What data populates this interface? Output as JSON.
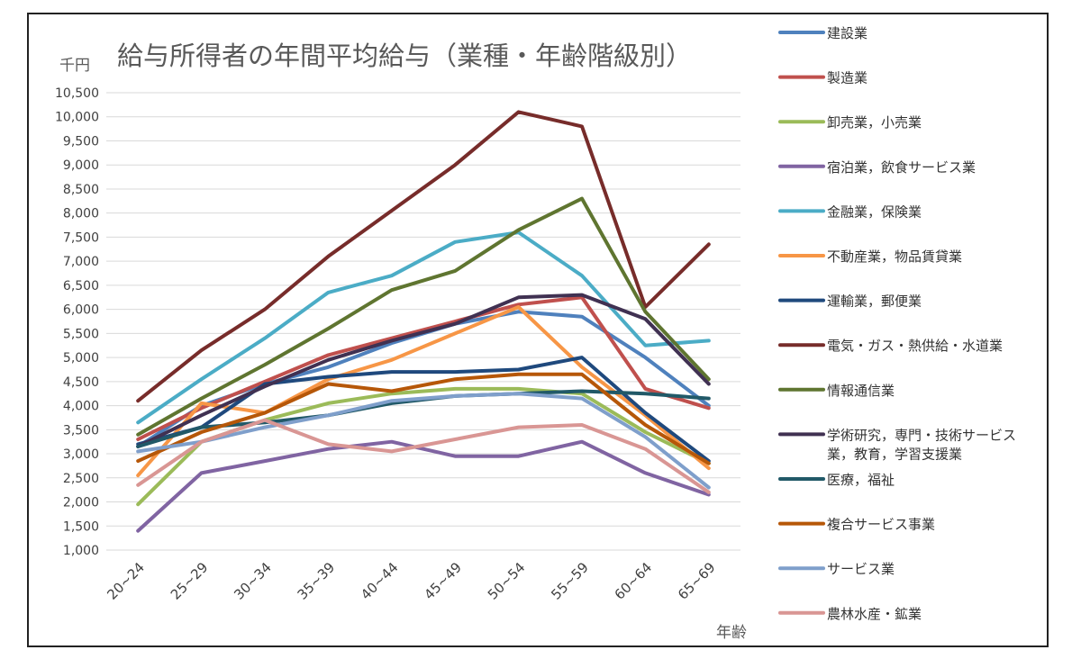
{
  "chart_data": {
    "type": "line",
    "title": "給与所得者の年間平均給与（業種・年齢階級別）",
    "yunit": "千円",
    "xlabel": "年齢",
    "ylim": [
      1000,
      10500
    ],
    "yticks": [
      1000,
      1500,
      2000,
      2500,
      3000,
      3500,
      4000,
      4500,
      5000,
      5500,
      6000,
      6500,
      7000,
      7500,
      8000,
      8500,
      9000,
      9500,
      10000,
      10500
    ],
    "ytick_labels": [
      "1,000",
      "1,500",
      "2,000",
      "2,500",
      "3,000",
      "3,500",
      "4,000",
      "4,500",
      "5,000",
      "5,500",
      "6,000",
      "6,500",
      "7,000",
      "7,500",
      "8,000",
      "8,500",
      "9,000",
      "9,500",
      "10,000",
      "10,500"
    ],
    "categories": [
      "20~24",
      "25~29",
      "30~34",
      "35~39",
      "40~44",
      "45~49",
      "50~54",
      "55~59",
      "60~64",
      "65~69"
    ],
    "grid": true,
    "legend_position": "right",
    "series": [
      {
        "name": "建設業",
        "color": "#4f81bd",
        "values": [
          3150,
          4000,
          4450,
          4800,
          5300,
          5700,
          5950,
          5850,
          5000,
          4000
        ]
      },
      {
        "name": "製造業",
        "color": "#c0504d",
        "values": [
          3300,
          3950,
          4500,
          5050,
          5400,
          5750,
          6100,
          6250,
          4350,
          3950
        ]
      },
      {
        "name": "卸売業，小売業",
        "color": "#9bbb59",
        "values": [
          1950,
          3250,
          3700,
          4050,
          4250,
          4350,
          4350,
          4250,
          3450,
          2800
        ]
      },
      {
        "name": "宿泊業，飲食サービス業",
        "color": "#8064a2",
        "values": [
          1400,
          2600,
          2850,
          3100,
          3250,
          2950,
          2950,
          3250,
          2600,
          2150
        ]
      },
      {
        "name": "金融業，保険業",
        "color": "#4bacc6",
        "values": [
          3650,
          4550,
          5400,
          6350,
          6700,
          7400,
          7600,
          6700,
          5250,
          5350
        ]
      },
      {
        "name": "不動産業，物品賃貸業",
        "color": "#f79646",
        "values": [
          2550,
          4050,
          3850,
          4550,
          4950,
          5500,
          6050,
          4800,
          3800,
          2700
        ]
      },
      {
        "name": "運輸業，郵便業",
        "color": "#1f497d",
        "values": [
          3200,
          3550,
          4450,
          4600,
          4700,
          4700,
          4750,
          5000,
          3850,
          2850
        ]
      },
      {
        "name": "電気・ガス・熱供給・水道業",
        "color": "#772c2a",
        "values": [
          4100,
          5150,
          6000,
          7100,
          8050,
          9000,
          10100,
          9800,
          6050,
          7350
        ]
      },
      {
        "name": "情報通信業",
        "color": "#5f7530",
        "values": [
          3400,
          4150,
          4850,
          5600,
          6400,
          6800,
          7650,
          8300,
          5950,
          4550
        ]
      },
      {
        "name": "学術研究，専門・技術サービス業，教育，学習支援業",
        "color": "#403152",
        "values": [
          3150,
          3800,
          4400,
          4950,
          5350,
          5700,
          6250,
          6300,
          5800,
          4450
        ]
      },
      {
        "name": "医療，福祉",
        "color": "#215968",
        "values": [
          3150,
          3550,
          3650,
          3800,
          4050,
          4200,
          4250,
          4300,
          4250,
          4150
        ]
      },
      {
        "name": "複合サービス事業",
        "color": "#b65708",
        "values": [
          2850,
          3450,
          3850,
          4450,
          4300,
          4550,
          4650,
          4650,
          3600,
          2800
        ]
      },
      {
        "name": "サービス業",
        "color": "#7f9fcb",
        "values": [
          3050,
          3250,
          3550,
          3800,
          4100,
          4200,
          4250,
          4150,
          3350,
          2300
        ]
      },
      {
        "name": "農林水産・鉱業",
        "color": "#d99694",
        "values": [
          2350,
          3250,
          3700,
          3200,
          3050,
          3300,
          3550,
          3600,
          3100,
          2200
        ]
      }
    ],
    "legend_labels": [
      [
        "建設業"
      ],
      [
        "製造業"
      ],
      [
        "卸売業，小売業"
      ],
      [
        "宿泊業，飲食サービス業"
      ],
      [
        "金融業，保険業"
      ],
      [
        "不動産業，物品賃貸業"
      ],
      [
        "運輸業，郵便業"
      ],
      [
        "電気・ガス・熱供給・水道業"
      ],
      [
        "情報通信業"
      ],
      [
        "学術研究，専門・技術サービス",
        "業，教育，学習支援業"
      ],
      [
        "医療，福祉"
      ],
      [
        "複合サービス事業"
      ],
      [
        "サービス業"
      ],
      [
        "農林水産・鉱業"
      ]
    ]
  }
}
